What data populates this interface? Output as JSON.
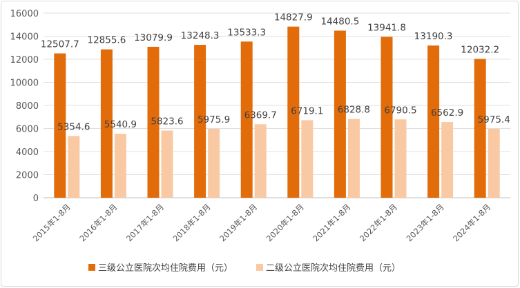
{
  "chart_data": {
    "type": "bar",
    "categories": [
      "2015年1-8月",
      "2016年1-8月",
      "2017年1-8月",
      "2018年1-8月",
      "2019年1-8月",
      "2020年1-8月",
      "2021年1-8月",
      "2022年1-8月",
      "2023年1-8月",
      "2024年1-8月"
    ],
    "series": [
      {
        "name": "三级公立医院次均住院费用（元）",
        "color": "#E36C0A",
        "values": [
          12507.7,
          12855.6,
          13079.9,
          13248.3,
          13533.3,
          14827.9,
          14480.5,
          13941.8,
          13190.3,
          12032.2
        ]
      },
      {
        "name": "二级公立医院次均住院费用（元）",
        "color": "#F9C9A3",
        "values": [
          5354.6,
          5540.9,
          5823.6,
          5975.9,
          6369.7,
          6719.1,
          6828.8,
          6790.5,
          6562.9,
          5975.4
        ]
      }
    ],
    "ylim": [
      0,
      16000
    ],
    "yticks": [
      0,
      2000,
      4000,
      6000,
      8000,
      10000,
      12000,
      14000,
      16000
    ],
    "grid": true,
    "legend": "bottom"
  }
}
